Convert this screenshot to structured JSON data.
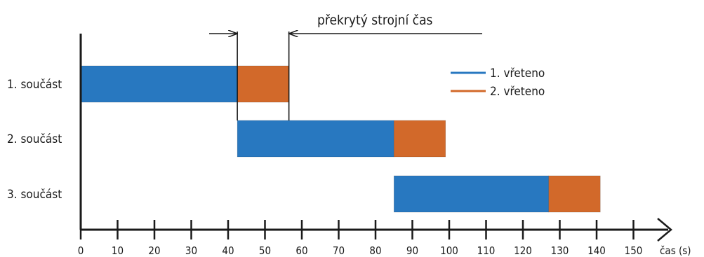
{
  "chart_data": {
    "type": "bar",
    "orientation": "horizontal",
    "stacked": true,
    "categories": [
      "1. součást",
      "2. součást",
      "3. součást"
    ],
    "series": [
      {
        "name": "1. vřeteno",
        "color": "#2878c0",
        "start": [
          0,
          42.5,
          85
        ],
        "end": [
          42.5,
          85,
          127
        ]
      },
      {
        "name": "2. vřeteno",
        "color": "#d2692a",
        "start": [
          42.5,
          85,
          127
        ],
        "end": [
          56.5,
          99,
          141
        ]
      }
    ],
    "xlabel": "čas (s)",
    "xticks": [
      0,
      10,
      20,
      30,
      40,
      50,
      60,
      70,
      80,
      90,
      100,
      110,
      120,
      130,
      140,
      150
    ],
    "xlim": [
      0,
      158
    ],
    "legend_position": "top-right",
    "annotation": {
      "text": "překrytý strojní čas",
      "from": 42.5,
      "to": 56.5
    }
  }
}
